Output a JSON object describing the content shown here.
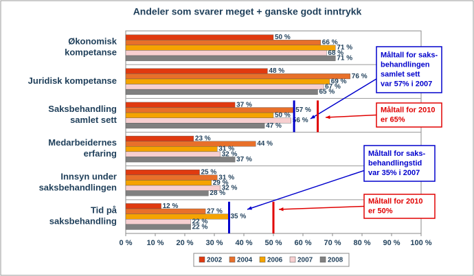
{
  "chart_data": {
    "type": "barh",
    "title": "Andeler som svarer meget + ganske godt inntrykk",
    "categories": [
      "Økonomisk\nkompetanse",
      "Juridisk kompetanse",
      "Saksbehandling\nsamlet sett",
      "Medarbeidernes\nerfaring",
      "Innsyn under\nsaksbehandlingen",
      "Tid på\nsaksbehandling"
    ],
    "series": [
      {
        "name": "2002",
        "color": "#e03a10",
        "values": [
          50,
          48,
          37,
          23,
          25,
          12
        ],
        "value_labels": [
          "50 %",
          "48 %",
          "37 %",
          "23 %",
          "25 %",
          "12 %"
        ]
      },
      {
        "name": "2004",
        "color": "#e8702a",
        "values": [
          66,
          76,
          57,
          44,
          31,
          27
        ],
        "value_labels": [
          "66 %",
          "76 %",
          "57 %",
          "44 %",
          "31 %",
          "27 %"
        ]
      },
      {
        "name": "2006",
        "color": "#f5a300",
        "values": [
          71,
          69,
          50,
          31,
          29,
          35
        ],
        "value_labels": [
          "71 %",
          "69 %",
          "50 %",
          "31 %",
          "29 %",
          "35 %"
        ]
      },
      {
        "name": "2007",
        "color": "#f7cfd0",
        "values": [
          68,
          67,
          56,
          32,
          32,
          22
        ],
        "value_labels": [
          "68 %",
          "67 %",
          "56 %",
          "32 %",
          "32 %",
          "22 %"
        ]
      },
      {
        "name": "2008",
        "color": "#808080",
        "values": [
          71,
          65,
          47,
          37,
          28,
          22
        ],
        "value_labels": [
          "71 %",
          "65 %",
          "47 %",
          "37 %",
          "28 %",
          "22 %"
        ]
      }
    ],
    "xlim": [
      0,
      100
    ],
    "xticks": [
      {
        "value": 0,
        "label": "0 %"
      },
      {
        "value": 10,
        "label": "10 %"
      },
      {
        "value": 20,
        "label": "20 %"
      },
      {
        "value": 30,
        "label": "30 %"
      },
      {
        "value": 40,
        "label": "40 %"
      },
      {
        "value": 50,
        "label": "50 %"
      },
      {
        "value": 60,
        "label": "60 %"
      },
      {
        "value": 70,
        "label": "70 %"
      },
      {
        "value": 80,
        "label": "80 %"
      },
      {
        "value": 90,
        "label": "90 %"
      },
      {
        "value": 100,
        "label": "100 %"
      }
    ],
    "legend": "bottom",
    "annotations": [
      {
        "text": "Måltall for saks-\nbehandlingen\nsamlet sett\nvar 57% i 2007",
        "color": "#0000cc",
        "value": 57,
        "category": "Saksbehandling\nsamlet sett"
      },
      {
        "text": "Måltall for 2010\ner 65%",
        "color": "#e00000",
        "value": 65,
        "category": "Saksbehandling\nsamlet sett"
      },
      {
        "text": "Måltall for saks-\nbehandlingstid\nvar 35% i 2007",
        "color": "#0000cc",
        "value": 35,
        "category": "Tid på\nsaksbehandling"
      },
      {
        "text": "Måltall for 2010\ner 50%",
        "color": "#e00000",
        "value": 50,
        "category": "Tid på\nsaksbehandling"
      }
    ]
  }
}
